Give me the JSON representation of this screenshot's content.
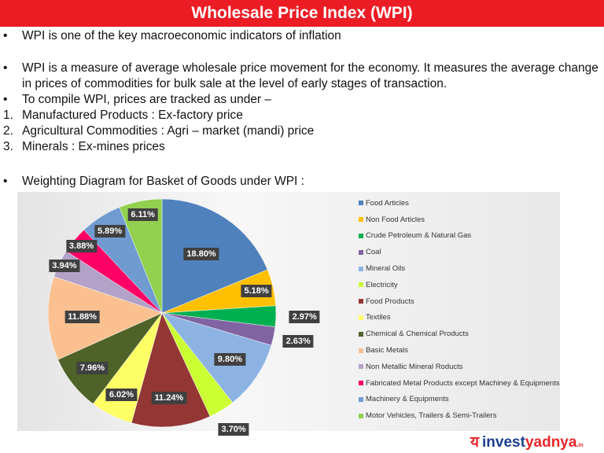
{
  "title": "Wholesale Price Index (WPI)",
  "lines": [
    {
      "marker": "•",
      "text": "WPI is one of the key macroeconomic indicators of inflation"
    },
    {
      "marker": "•",
      "text": "WPI is a measure of average wholesale price movement for the economy. It measures the average change"
    },
    {
      "marker": "",
      "text": "in prices of commodities for bulk sale at the level of early stages of transaction."
    },
    {
      "marker": "•",
      "text": "To compile WPI, prices are tracked as under –"
    },
    {
      "marker": "1.",
      "text": "Manufactured Products : Ex-factory price"
    },
    {
      "marker": "2.",
      "text": "Agricultural Commodities : Agri – market (mandi) price"
    },
    {
      "marker": "3.",
      "text": "Minerals : Ex-mines prices"
    },
    {
      "marker": "•",
      "text": "Weighting Diagram for Basket of Goods under WPI :"
    }
  ],
  "chart_data": {
    "type": "pie",
    "legend_position": "right",
    "categories": [
      "Food Articles",
      "Non Food Articles",
      "Crude Petroleum & Natural Gas",
      "Coal",
      "Mineral Oils",
      "Electricity",
      "Food Products",
      "Textiles",
      "Chemical & Chemical Products",
      "Basic Metals",
      "Non Metallic Mineral Roducts",
      "Fabricated Metal Products except Machiney & Equipments",
      "Machinery & Equipments",
      "Motor Vehicles,  Trailers & Semi-Trailers"
    ],
    "values": [
      18.8,
      5.18,
      2.97,
      2.63,
      9.8,
      3.7,
      11.24,
      6.02,
      7.96,
      11.88,
      3.94,
      3.88,
      5.89,
      6.11
    ],
    "labels": [
      "18.80%",
      "5.18%",
      "2.97%",
      "2.63%",
      "9.80%",
      "3.70%",
      "11.24%",
      "6.02%",
      "7.96%",
      "11.88%",
      "3.94%",
      "3.88%",
      "5.89%",
      "6.11%"
    ],
    "colors": [
      "#4f81bd",
      "#ffc000",
      "#00b050",
      "#8064a2",
      "#8db3e2",
      "#ccff33",
      "#943634",
      "#ffff66",
      "#4f6228",
      "#fac090",
      "#b3a2c7",
      "#ff0066",
      "#6f9bd1",
      "#92d050"
    ]
  },
  "logo": {
    "glyph": "य",
    "a": "invest",
    "b": "yadnya",
    ".in": ".in"
  }
}
